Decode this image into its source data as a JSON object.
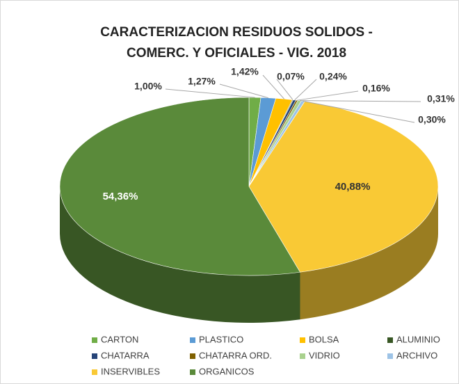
{
  "chart_data": {
    "type": "pie3d",
    "title": [
      "CARACTERIZACION RESIDUOS SOLIDOS -",
      "COMERC. Y OFICIALES - VIG. 2018"
    ],
    "categories": [
      "CARTON",
      "PLASTICO",
      "BOLSA",
      "ALUMINIO",
      "CHATARRA",
      "CHATARRA ORD.",
      "VIDRIO",
      "ARCHIVO",
      "INSERVIBLES",
      "ORGANICOS"
    ],
    "values": [
      1.0,
      1.27,
      1.42,
      0.07,
      0.24,
      0.16,
      0.31,
      0.3,
      40.88,
      54.36
    ],
    "value_labels": [
      "1,00%",
      "1,27%",
      "1,42%",
      "0,07%",
      "0,24%",
      "0,16%",
      "0,31%",
      "0,30%",
      "40,88%",
      "54,36%"
    ],
    "colors": [
      "#70ad47",
      "#5b9bd5",
      "#ffc000",
      "#375623",
      "#264478",
      "#7f6000",
      "#a9d18e",
      "#9dc3e6",
      "#f9c935",
      "#5a8a3a"
    ],
    "legend": "bottom"
  }
}
